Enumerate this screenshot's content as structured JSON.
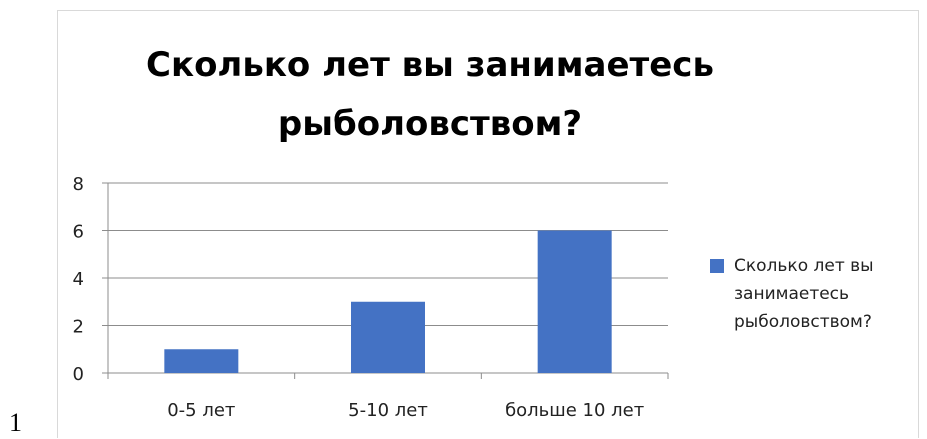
{
  "page_number": "1",
  "chart_data": {
    "type": "bar",
    "title_lines": [
      "Сколько лет вы занимаетесь",
      "рыболовством?"
    ],
    "categories": [
      "0-5 лет",
      "5-10 лет",
      "больше 10 лет"
    ],
    "series": [
      {
        "name": "Сколько лет вы занимаетесь рыболовством?",
        "values": [
          1,
          3,
          6
        ],
        "color": "#4472c4"
      }
    ],
    "ylim": [
      0,
      8
    ],
    "yticks": [
      "0",
      "2",
      "4",
      "6",
      "8"
    ],
    "grid": true,
    "legend_position": "right",
    "legend_lines": [
      "Сколько лет вы",
      "занимаетесь",
      "рыболовством?"
    ]
  }
}
